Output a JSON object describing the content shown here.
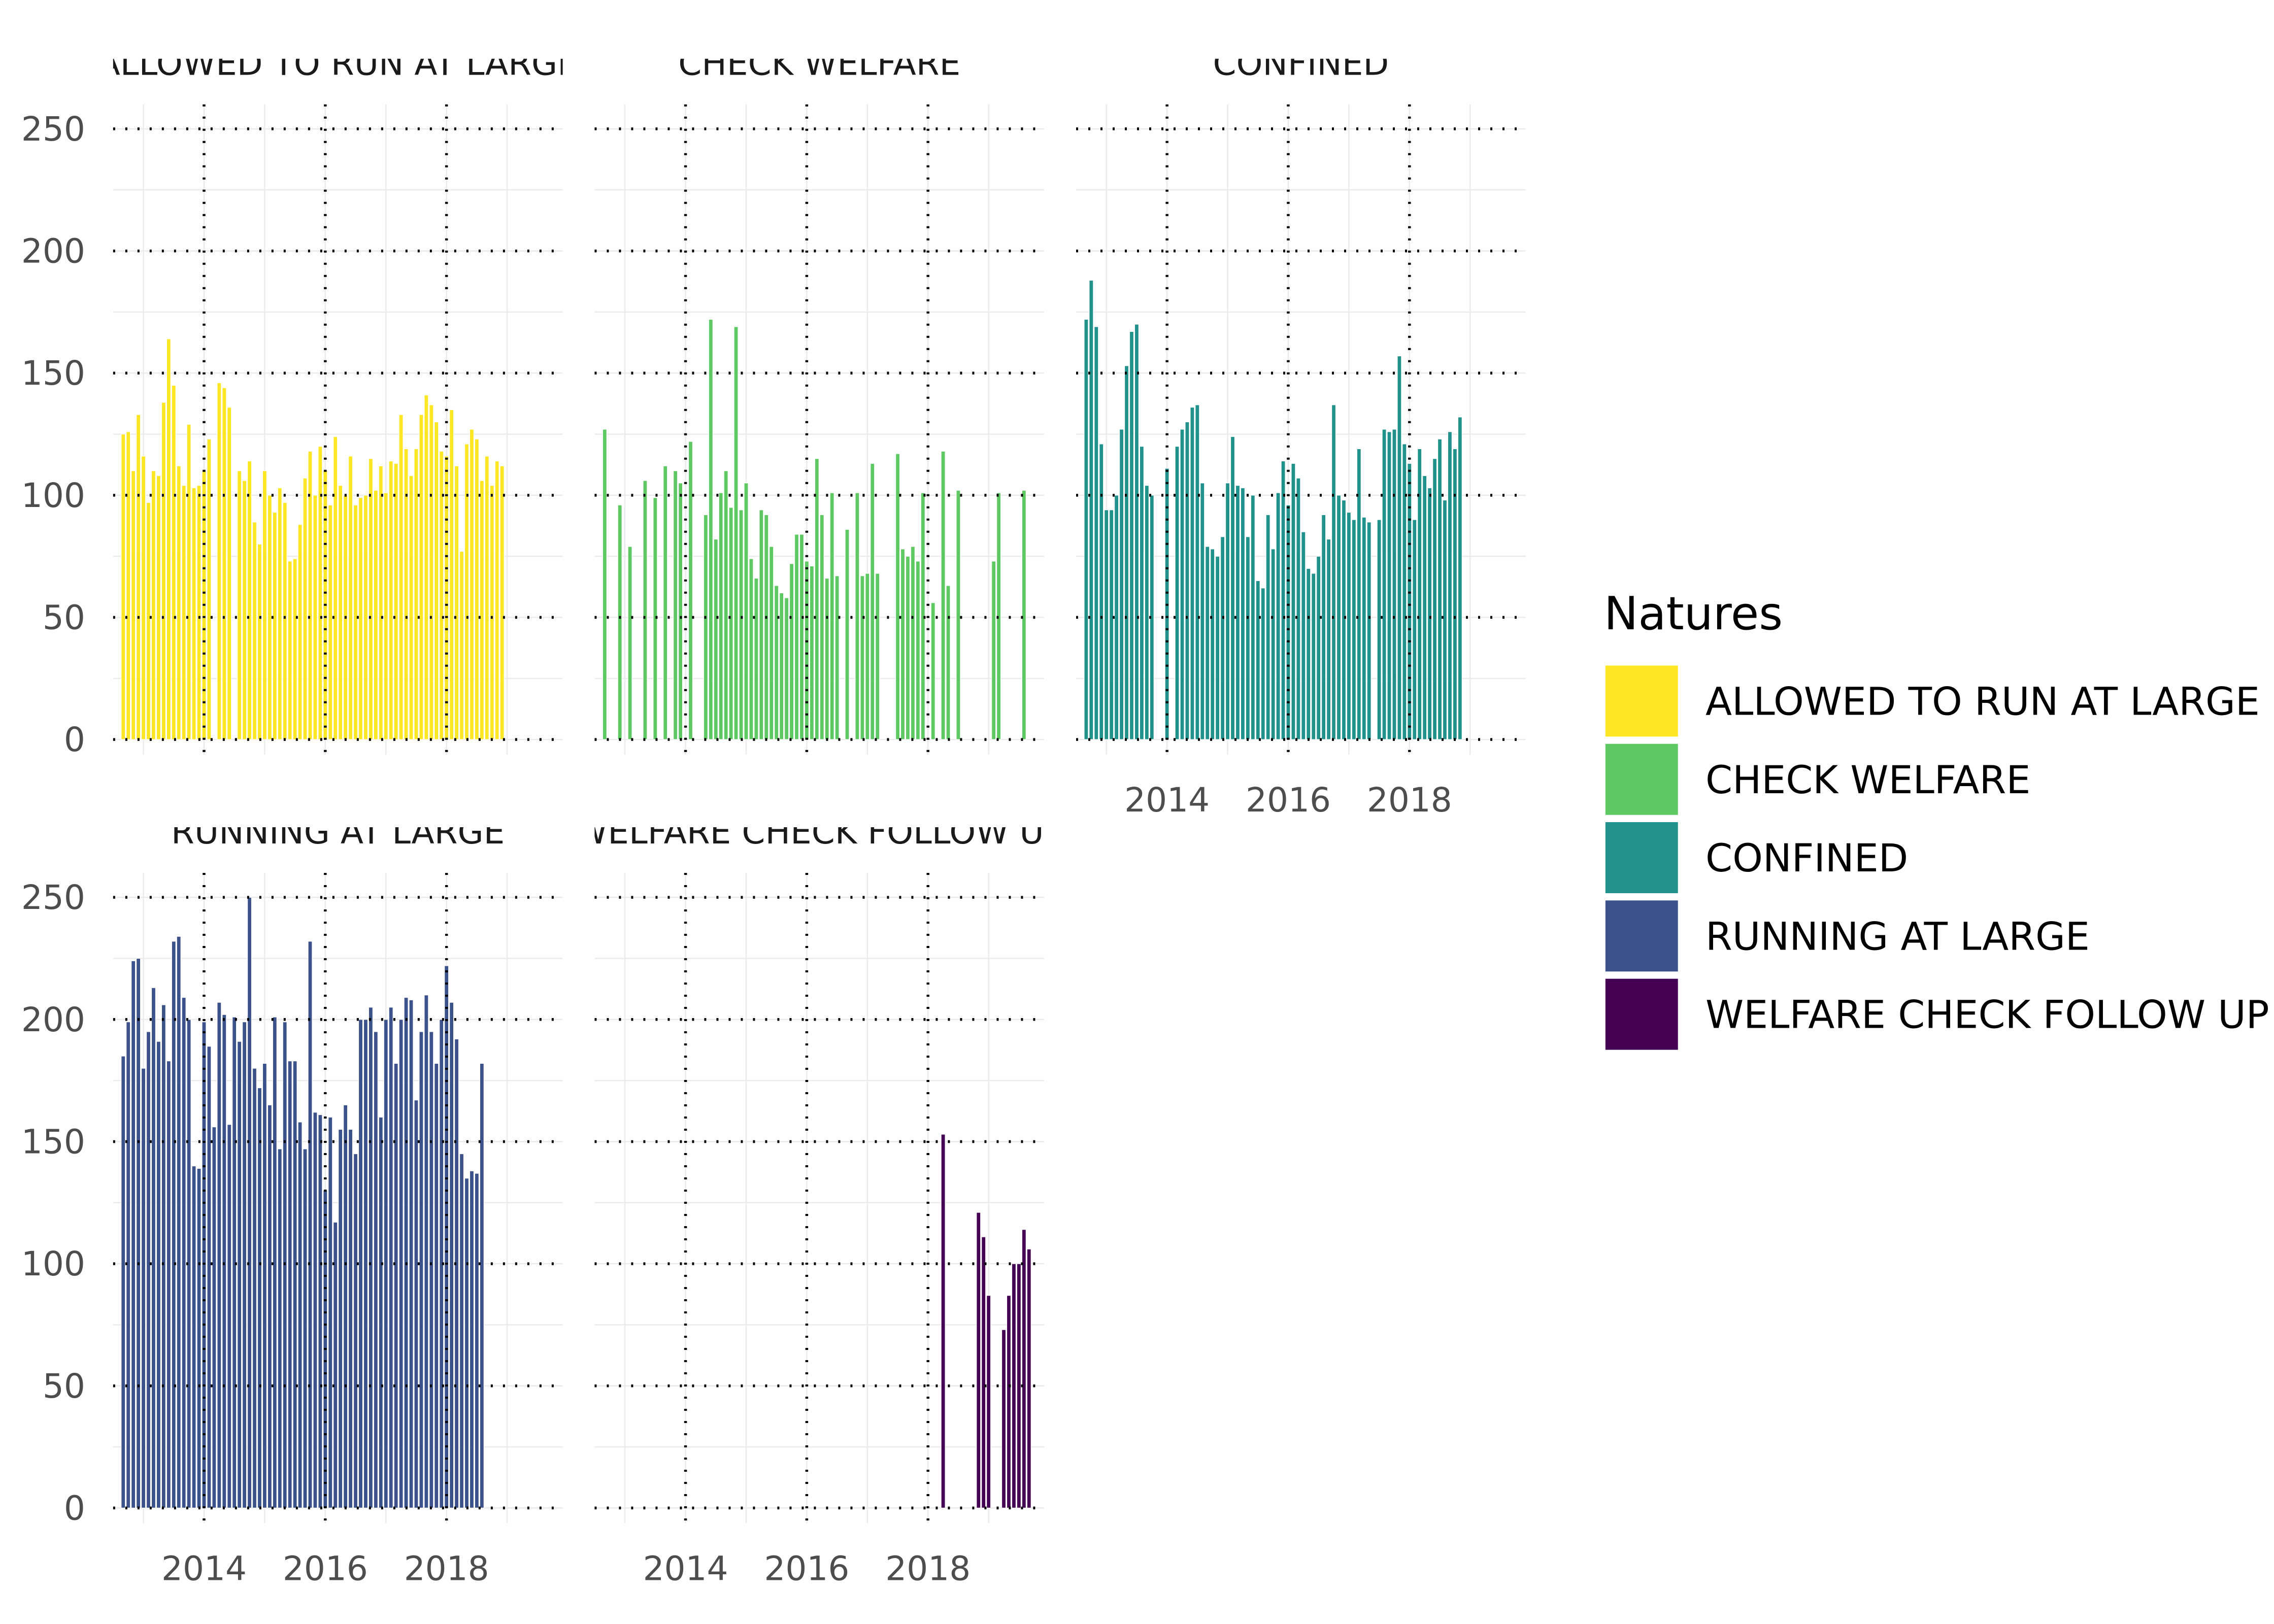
{
  "chart_data": {
    "type": "bar",
    "facet_layout": "wrap 3 columns",
    "x_axis": {
      "type": "date",
      "range": [
        "2012-07",
        "2019-12"
      ],
      "tick_labels": [
        "2014",
        "2016",
        "2018"
      ]
    },
    "y_axis": {
      "range": [
        0,
        260
      ],
      "tick_labels": [
        "0",
        "50",
        "100",
        "150",
        "200",
        "250"
      ]
    },
    "reference_lines": {
      "vertical_dotted_at": [
        "2014-01",
        "2016-01",
        "2018-01"
      ],
      "horizontal_dotted_at": [
        0,
        50,
        100,
        150,
        200,
        250
      ]
    },
    "legend": {
      "title": "Natures",
      "position": "right",
      "entries": [
        "ALLOWED TO RUN AT LARGE",
        "CHECK WELFARE",
        "CONFINED",
        "RUNNING AT LARGE",
        "WELFARE CHECK FOLLOW UP"
      ]
    },
    "panels": [
      {
        "strip_label": "ALLOWED TO RUN AT LARGE",
        "color": "#FDE725",
        "show_x_ticks": false,
        "start_month": "2012-09",
        "values": [
          125,
          126,
          110,
          133,
          116,
          97,
          110,
          108,
          138,
          164,
          145,
          112,
          104,
          129,
          103,
          104,
          110,
          123,
          0,
          146,
          144,
          136,
          0,
          110,
          106,
          114,
          89,
          80,
          110,
          100,
          93,
          103,
          97,
          73,
          74,
          88,
          107,
          118,
          100,
          120,
          110,
          96,
          124,
          104,
          100,
          116,
          96,
          99,
          100,
          115,
          102,
          112,
          101,
          114,
          113,
          133,
          119,
          108,
          119,
          133,
          141,
          137,
          130,
          118,
          116,
          135,
          112,
          77,
          121,
          127,
          123,
          106,
          116,
          104,
          114,
          112
        ]
      },
      {
        "strip_label": "CHECK WELFARE",
        "color": "#5EC962",
        "show_x_ticks": false,
        "start_month": "2012-09",
        "values": [
          127,
          0,
          0,
          96,
          0,
          79,
          0,
          0,
          106,
          0,
          99,
          0,
          112,
          0,
          110,
          105,
          0,
          122,
          0,
          0,
          92,
          172,
          82,
          101,
          110,
          95,
          169,
          94,
          105,
          74,
          66,
          94,
          92,
          79,
          63,
          60,
          58,
          72,
          84,
          84,
          73,
          71,
          115,
          92,
          66,
          101,
          67,
          0,
          86,
          0,
          101,
          67,
          68,
          113,
          68,
          0,
          0,
          0,
          117,
          78,
          75,
          79,
          73,
          101,
          0,
          56,
          0,
          118,
          63,
          0,
          102,
          0,
          0,
          0,
          0,
          0,
          0,
          73,
          101,
          0,
          0,
          0,
          0,
          102
        ]
      },
      {
        "strip_label": "CONFINED",
        "color": "#21918C",
        "show_x_ticks": true,
        "start_month": "2012-09",
        "values": [
          172,
          188,
          169,
          121,
          94,
          94,
          100,
          127,
          153,
          167,
          170,
          120,
          104,
          100,
          0,
          0,
          111,
          0,
          120,
          127,
          130,
          136,
          137,
          105,
          79,
          78,
          75,
          83,
          105,
          124,
          104,
          103,
          83,
          100,
          65,
          62,
          92,
          78,
          101,
          114,
          96,
          113,
          107,
          85,
          70,
          68,
          75,
          92,
          82,
          137,
          100,
          98,
          93,
          90,
          119,
          91,
          89,
          0,
          90,
          127,
          126,
          127,
          157,
          121,
          113,
          90,
          119,
          108,
          103,
          115,
          123,
          98,
          126,
          119,
          132
        ]
      },
      {
        "strip_label": "RUNNING AT LARGE",
        "color": "#3B528B",
        "show_x_ticks": true,
        "start_month": "2012-09",
        "values": [
          185,
          199,
          224,
          225,
          180,
          195,
          213,
          191,
          206,
          183,
          232,
          234,
          209,
          200,
          140,
          139,
          199,
          189,
          156,
          207,
          202,
          157,
          201,
          191,
          199,
          250,
          180,
          172,
          182,
          165,
          201,
          147,
          199,
          183,
          183,
          158,
          147,
          232,
          162,
          161,
          130,
          160,
          117,
          155,
          165,
          155,
          145,
          200,
          200,
          205,
          195,
          160,
          200,
          205,
          182,
          200,
          209,
          208,
          167,
          195,
          210,
          195,
          182,
          200,
          222,
          207,
          192,
          145,
          135,
          138,
          137,
          182
        ]
      },
      {
        "strip_label": "WELFARE CHECK FOLLOW UP",
        "color": "#440154",
        "show_x_ticks": true,
        "start_month": "2018-02",
        "values": [
          0,
          0,
          153,
          0,
          0,
          0,
          0,
          0,
          0,
          121,
          111,
          87,
          0,
          0,
          73,
          87,
          100,
          100,
          114,
          106
        ]
      }
    ]
  }
}
